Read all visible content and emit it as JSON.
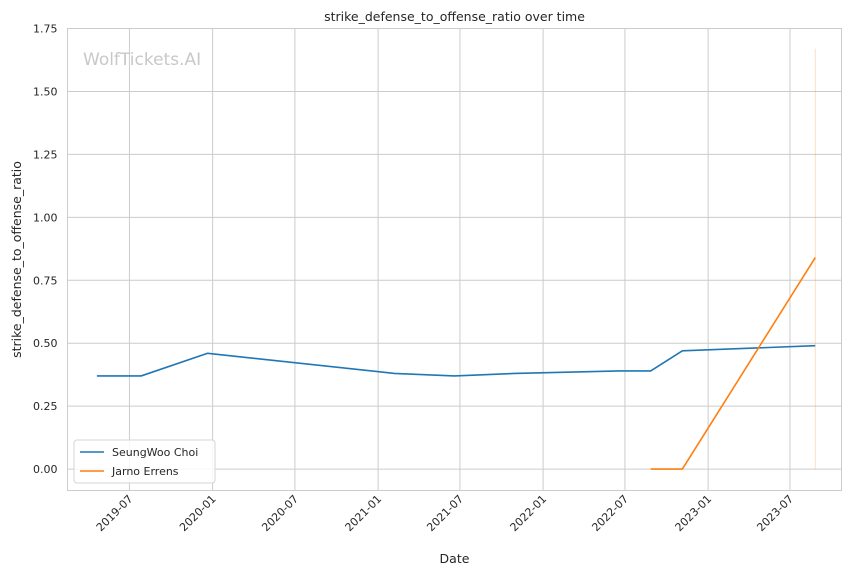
{
  "watermark": "WolfTickets.AI",
  "chart_data": {
    "type": "line",
    "title": "strike_defense_to_offense_ratio over time",
    "xlabel": "Date",
    "ylabel": "strike_defense_to_offense_ratio",
    "xlim": [
      "2019-02-14",
      "2023-10-23"
    ],
    "ylim": [
      -0.085,
      1.75
    ],
    "x_ticks": [
      "2019-07",
      "2020-01",
      "2020-07",
      "2021-01",
      "2021-07",
      "2022-01",
      "2022-07",
      "2023-01",
      "2023-07"
    ],
    "y_ticks": [
      0.0,
      0.25,
      0.5,
      0.75,
      1.0,
      1.25,
      1.5,
      1.75
    ],
    "y_tick_labels": [
      "0.00",
      "0.25",
      "0.50",
      "0.75",
      "1.00",
      "1.25",
      "1.50",
      "1.75"
    ],
    "grid": true,
    "legend_position": "bottom-left",
    "series": [
      {
        "name": "SeungWoo Choi",
        "color": "#1f77b4",
        "points": [
          {
            "x": "2019-04-20",
            "y": 0.37
          },
          {
            "x": "2019-07-27",
            "y": 0.37
          },
          {
            "x": "2019-12-21",
            "y": 0.46
          },
          {
            "x": "2021-02-06",
            "y": 0.38
          },
          {
            "x": "2021-06-19",
            "y": 0.37
          },
          {
            "x": "2021-10-30",
            "y": 0.38
          },
          {
            "x": "2022-06-18",
            "y": 0.39
          },
          {
            "x": "2022-08-27",
            "y": 0.39
          },
          {
            "x": "2022-11-05",
            "y": 0.47
          },
          {
            "x": "2023-08-26",
            "y": 0.49
          }
        ]
      },
      {
        "name": "Jarno Errens",
        "color": "#ff7f0e",
        "points": [
          {
            "x": "2022-08-27",
            "y": 0.0
          },
          {
            "x": "2022-11-05",
            "y": 0.0
          },
          {
            "x": "2023-08-26",
            "y": 0.84
          }
        ],
        "range_band": {
          "x": "2023-08-26",
          "low": 0.0,
          "high": 1.67
        }
      }
    ]
  }
}
